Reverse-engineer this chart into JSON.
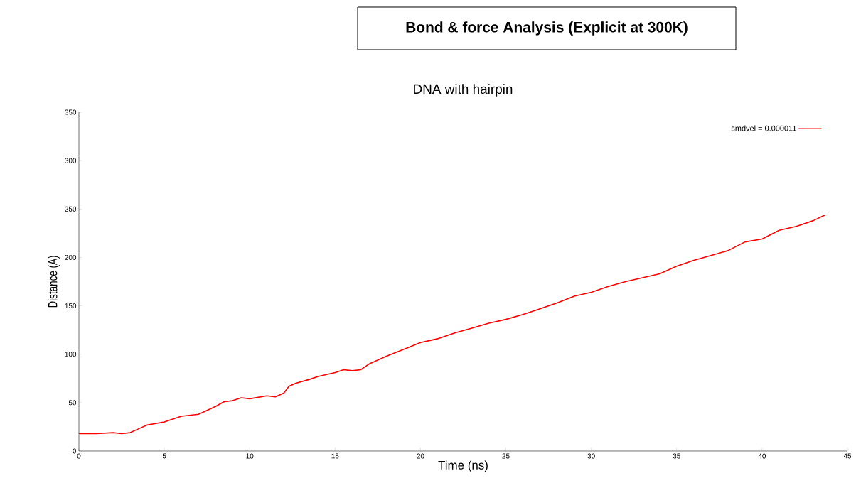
{
  "chart_data": {
    "type": "line",
    "title": "Bond & force Analysis (Explicit at 300K)",
    "subtitle": "DNA with hairpin",
    "xlabel": "Time (ns)",
    "ylabel": "Distance (A)",
    "x": [
      0,
      1,
      2,
      2.5,
      3,
      3.5,
      4,
      5,
      6,
      7,
      7.5,
      8,
      8.5,
      9,
      9.5,
      10,
      11,
      11.5,
      12,
      12.3,
      12.7,
      13.5,
      14,
      15,
      15.5,
      16,
      16.5,
      17,
      18,
      19,
      20,
      20.5,
      21,
      22,
      23,
      24,
      25,
      26,
      27,
      28,
      29,
      30,
      31,
      32,
      33,
      34,
      35,
      36,
      37,
      38,
      39,
      40,
      41,
      42,
      43,
      43.7
    ],
    "series": [
      {
        "name": "smdvel = 0.000011",
        "color": "#ff0000",
        "values": [
          18,
          18,
          19,
          18,
          19,
          23,
          27,
          30,
          36,
          38,
          42,
          46,
          51,
          52,
          55,
          54,
          57,
          56,
          60,
          67,
          70,
          74,
          77,
          81,
          84,
          83,
          84,
          90,
          98,
          105,
          112,
          114,
          116,
          122,
          127,
          132,
          136,
          141,
          147,
          153,
          160,
          164,
          170,
          175,
          179,
          183,
          191,
          197,
          202,
          207,
          216,
          219,
          228,
          232,
          238,
          244
        ]
      }
    ],
    "xlim": [
      0,
      45
    ],
    "ylim": [
      0,
      350
    ],
    "xticks": [
      0,
      5,
      10,
      15,
      20,
      25,
      30,
      35,
      40,
      45
    ],
    "yticks": [
      0,
      50,
      100,
      150,
      200,
      250,
      300,
      350
    ],
    "legend": "top right"
  }
}
